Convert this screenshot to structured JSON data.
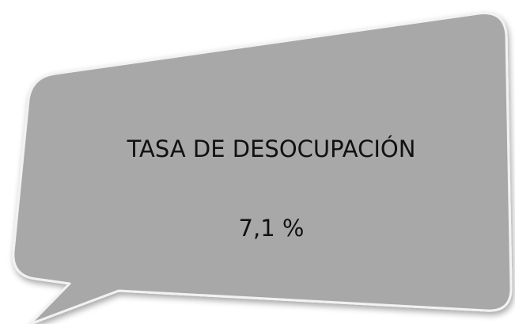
{
  "callout": {
    "title": "TASA DE DESOCUPACIÓN",
    "value": "7,1 %"
  }
}
